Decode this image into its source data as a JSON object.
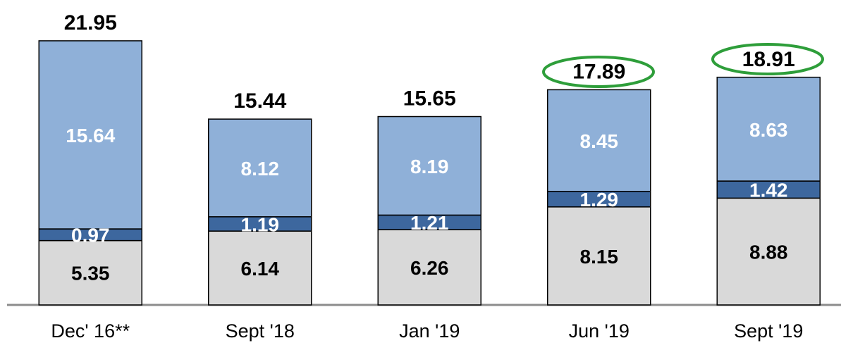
{
  "chart_data": {
    "type": "stacked-bar",
    "categories": [
      "Dec' 16**",
      "Sept '18",
      "Jan '19",
      "Jun '19",
      "Sept '19"
    ],
    "series": [
      {
        "color": "#d9d9d9",
        "label_color": "#000000",
        "values": [
          5.35,
          6.14,
          6.26,
          8.15,
          8.88
        ]
      },
      {
        "color": "#3d679e",
        "label_color": "#ffffff",
        "values": [
          0.97,
          1.19,
          1.21,
          1.29,
          1.42
        ]
      },
      {
        "color": "#8fb0d8",
        "label_color": "#ffffff",
        "values": [
          15.64,
          8.12,
          8.19,
          8.45,
          8.63
        ]
      }
    ],
    "totals": [
      21.95,
      15.44,
      15.65,
      17.89,
      18.91
    ]
  }
}
